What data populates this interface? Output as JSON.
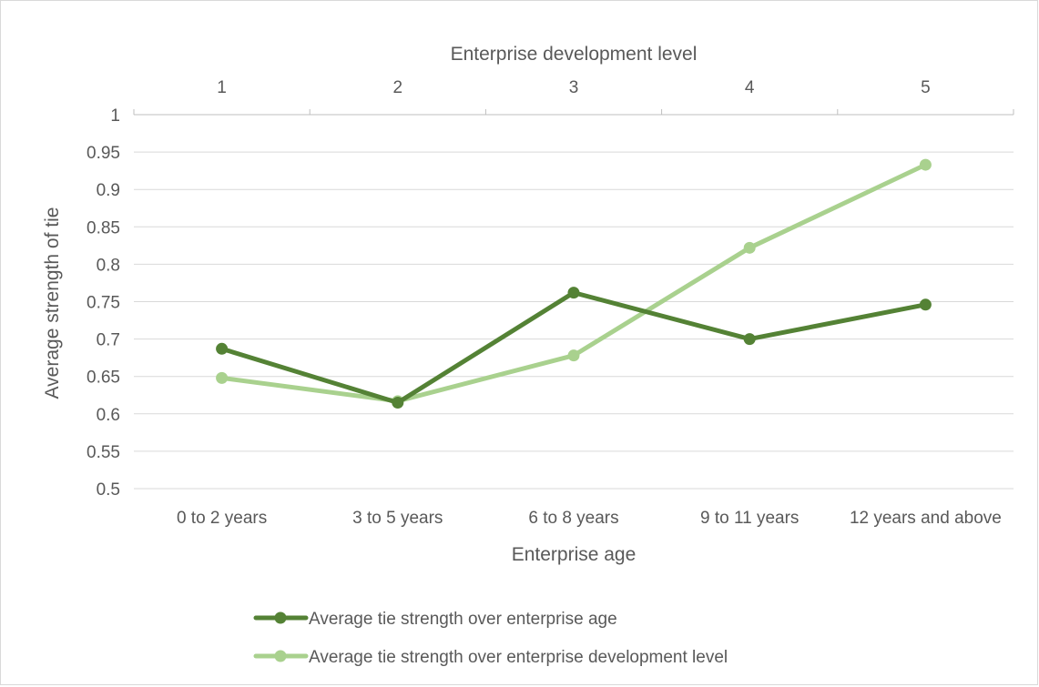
{
  "chart_data": {
    "type": "line",
    "title": "",
    "xlabel": "Enterprise age",
    "x2label": "Enterprise development level",
    "ylabel": "Average strength of tie",
    "categories": [
      "0 to 2 years",
      "3 to 5 years",
      "6 to 8 years",
      "9 to 11 years",
      "12 years and above"
    ],
    "categories_top": [
      "1",
      "2",
      "3",
      "4",
      "5"
    ],
    "ylim": [
      0.5,
      1
    ],
    "yticks": [
      "0.5",
      "0.55",
      "0.6",
      "0.65",
      "0.7",
      "0.75",
      "0.8",
      "0.85",
      "0.9",
      "0.95",
      "1"
    ],
    "grid": true,
    "legend_position": "bottom",
    "series": [
      {
        "name": "Average tie strength over enterprise age",
        "axis": "bottom",
        "color": "#548235",
        "values": [
          0.687,
          0.615,
          0.762,
          0.7,
          0.746
        ]
      },
      {
        "name": "Average tie strength over enterprise development level",
        "axis": "top",
        "color": "#a9d18e",
        "values": [
          0.648,
          0.617,
          0.678,
          0.822,
          0.933
        ]
      }
    ]
  }
}
